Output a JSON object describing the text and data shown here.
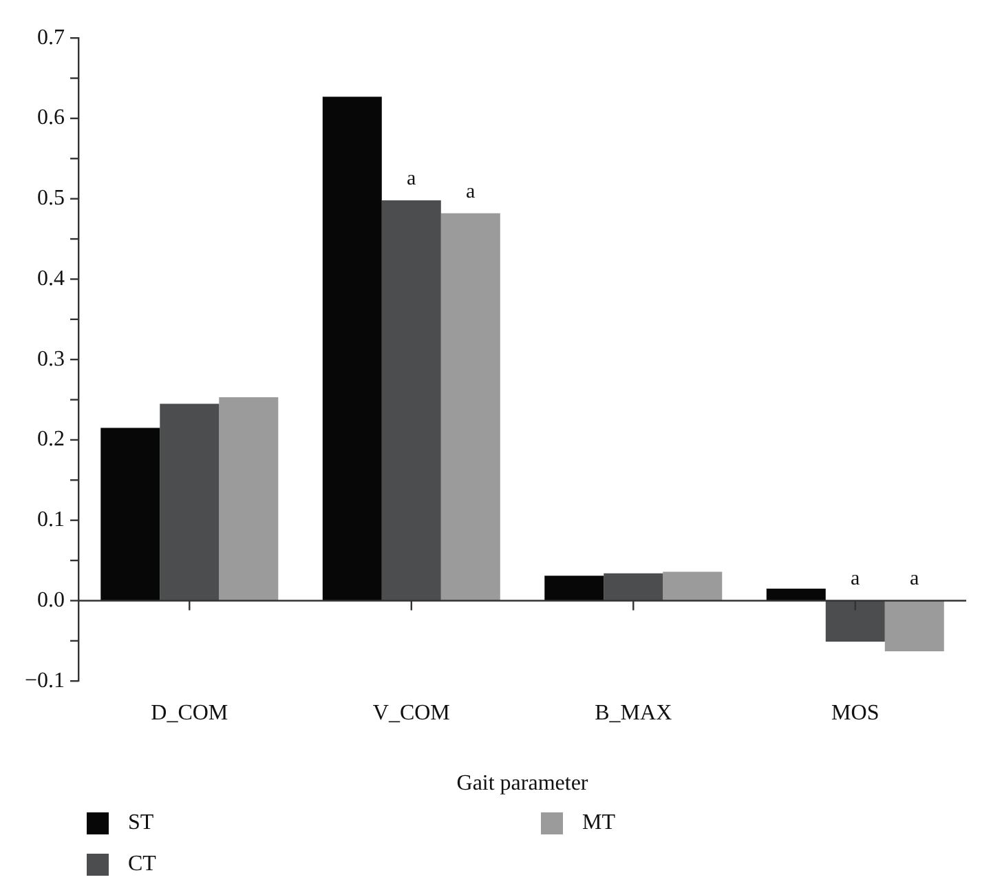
{
  "chart_data": {
    "type": "bar",
    "xlabel": "Gait parameter",
    "categories": [
      "D_COM",
      "V_COM",
      "B_MAX",
      "MOS"
    ],
    "series": [
      {
        "name": "ST",
        "color": "#070707",
        "values": [
          0.215,
          0.627,
          0.031,
          0.015
        ]
      },
      {
        "name": "CT",
        "color": "#4c4d4f",
        "values": [
          0.245,
          0.498,
          0.034,
          -0.051
        ],
        "value_labels": [
          null,
          "a",
          null,
          "a"
        ]
      },
      {
        "name": "MT",
        "color": "#9a9b9a",
        "values": [
          0.253,
          0.482,
          0.036,
          -0.063
        ],
        "value_labels": [
          null,
          "a",
          null,
          "a"
        ]
      }
    ],
    "ylim": [
      -0.1,
      0.7
    ],
    "yticks": [
      {
        "value": -0.1,
        "label": "−0.1"
      },
      {
        "value": -0.05,
        "label": null
      },
      {
        "value": 0,
        "label": "0.0"
      },
      {
        "value": 0.05,
        "label": null
      },
      0.1,
      {
        "value": 0.15,
        "label": null
      },
      0.2,
      {
        "value": 0.25,
        "label": null
      },
      0.3,
      {
        "value": 0.35,
        "label": null
      },
      0.4,
      {
        "value": 0.45,
        "label": null
      },
      0.5,
      {
        "value": 0.55,
        "label": null
      },
      0.6,
      {
        "value": 0.65,
        "label": null
      },
      0.7
    ],
    "legend": "bottom"
  }
}
